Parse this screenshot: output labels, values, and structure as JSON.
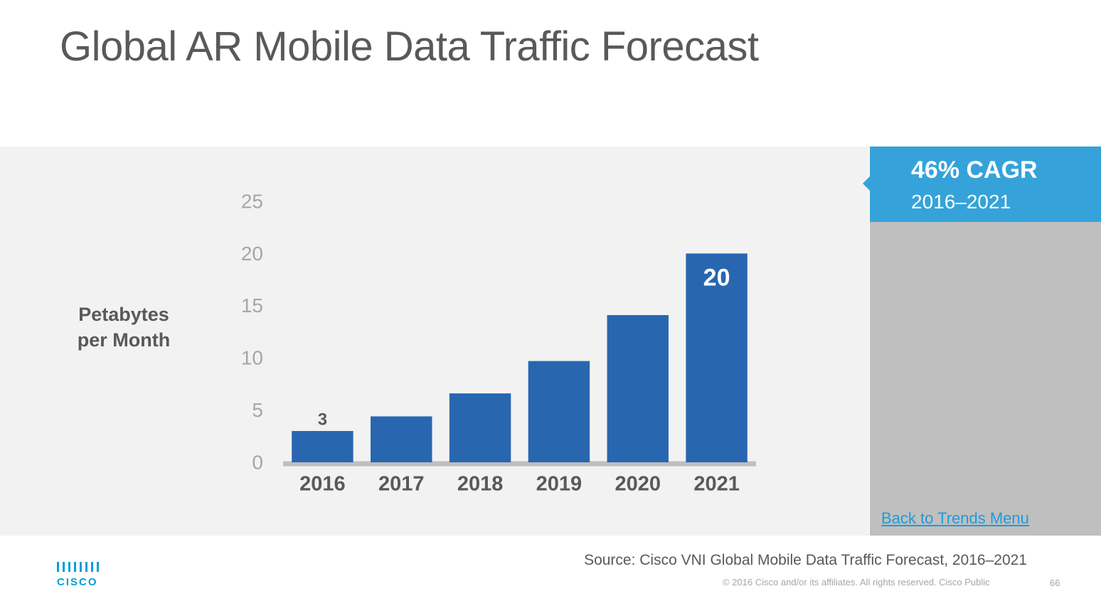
{
  "header": {
    "title": "Global AR Mobile Data Traffic Forecast"
  },
  "chart_data": {
    "type": "bar",
    "y_label": "Petabytes per Month",
    "categories": [
      "2016",
      "2017",
      "2018",
      "2019",
      "2020",
      "2021"
    ],
    "values": [
      3,
      4.4,
      6.6,
      9.7,
      14.1,
      20
    ],
    "value_labels": [
      "3",
      null,
      null,
      null,
      null,
      "20"
    ],
    "color": "#2966b0",
    "ylim": [
      0,
      25
    ],
    "yticks": [
      0,
      5,
      10,
      15,
      20,
      25
    ]
  },
  "callout": {
    "title": "46% CAGR",
    "subtitle": "2016–2021"
  },
  "link": "Back to Trends Menu",
  "source": "Source: Cisco VNI Global Mobile Data Traffic Forecast, 2016–2021",
  "footer": {
    "logo": "CISCO",
    "copyright": "© 2016  Cisco and/or its affiliates. All rights reserved.   Cisco Public",
    "page": "66"
  }
}
